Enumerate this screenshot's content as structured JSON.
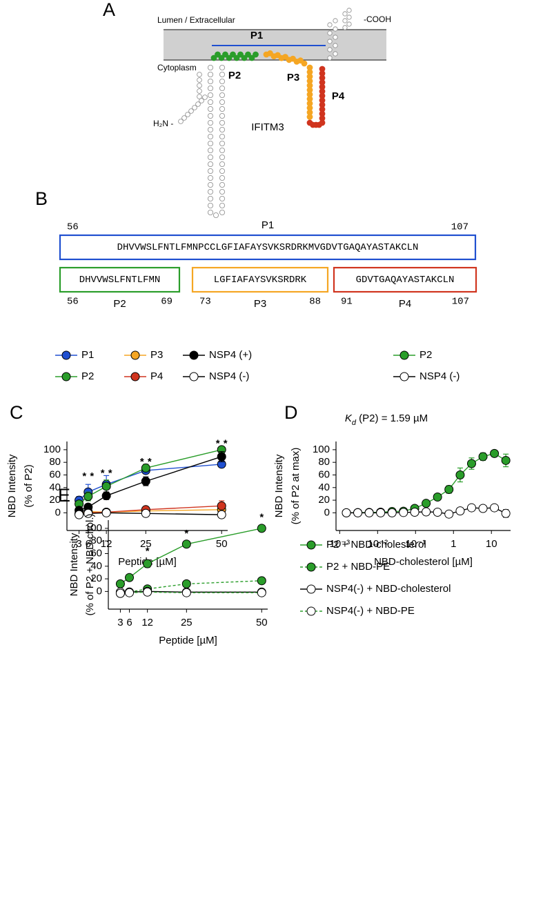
{
  "diagram": {
    "panel": "A",
    "lumen": "Lumen / Extracellular",
    "cooh": "-COOH",
    "cytoplasm": "Cytoplasm",
    "nterm": "H₂N -",
    "protein": "IFITM3",
    "segments": [
      {
        "name": "P1",
        "color": "#1f4fd0"
      },
      {
        "name": "P2",
        "color": "#2a9d2a"
      },
      {
        "name": "P3",
        "color": "#f5a623"
      },
      {
        "name": "P4",
        "color": "#d0341e"
      }
    ]
  },
  "sequences": {
    "panel": "B",
    "peptides": [
      {
        "name": "P1",
        "sequence": "DHVVWSLFNTLFMNPCCLGFIAFAYSVKSRDRKMVGDVTGAQAYASTAKCLN",
        "start": 56,
        "end": 107,
        "color": "#1f4fd0"
      },
      {
        "name": "P2",
        "sequence": "DHVVWSLFNTLFMN",
        "start": 56,
        "end": 69,
        "color": "#2a9d2a"
      },
      {
        "name": "P3",
        "sequence": "LGFIAFAYSVKSRDRK",
        "start": 73,
        "end": 88,
        "color": "#f5a623"
      },
      {
        "name": "P4",
        "sequence": "GDVTGAQAYASTAKCLN",
        "start": 91,
        "end": 107,
        "color": "#d0341e"
      }
    ]
  },
  "chart_data": [
    {
      "type": "line",
      "panel": "C",
      "legend": "top",
      "xlabel": "Peptide [µM]",
      "ylabel": [
        "NBD Intensity",
        "(% of P2)"
      ],
      "x": [
        3,
        6,
        12,
        25,
        50
      ],
      "xlim": [
        -1,
        52
      ],
      "xticks": [
        3,
        6,
        12,
        25,
        50
      ],
      "ylim": [
        -28,
        113
      ],
      "yticks": [
        0,
        20,
        40,
        60,
        80,
        100
      ],
      "series": [
        {
          "name": "P1",
          "color": "#1f4fd0",
          "fill": "#1f4fd0",
          "values": [
            20,
            33,
            45,
            67,
            77
          ],
          "errors": [
            6,
            12,
            14,
            4,
            3
          ]
        },
        {
          "name": "P2",
          "color": "#2a9d2a",
          "fill": "#2a9d2a",
          "values": [
            14,
            26,
            42,
            71,
            100
          ],
          "errors": [
            5,
            7,
            10,
            6,
            2
          ]
        },
        {
          "name": "P3",
          "color": "#f5a623",
          "fill": "#f5a623",
          "values": [
            -1,
            2,
            1,
            3,
            5
          ],
          "errors": [
            3,
            3,
            3,
            3,
            3
          ]
        },
        {
          "name": "P4",
          "color": "#d0341e",
          "fill": "#d0341e",
          "values": [
            -2,
            0,
            1,
            5,
            11
          ],
          "errors": [
            3,
            3,
            3,
            5,
            8
          ]
        },
        {
          "name": "NSP4 (+)",
          "color": "#000000",
          "fill": "#000000",
          "values": [
            4,
            9,
            27,
            50,
            89
          ],
          "errors": [
            3,
            4,
            6,
            7,
            8
          ]
        },
        {
          "name": "NSP4 (-)",
          "color": "#000000",
          "fill": "#ffffff",
          "values": [
            -3,
            -1,
            0,
            -1,
            -3
          ],
          "errors": [
            3,
            3,
            3,
            3,
            4
          ]
        }
      ],
      "annotations": [
        {
          "x": 6,
          "y": 57,
          "label": "*",
          "colors": [
            "#d0341e",
            "#f5a623"
          ]
        },
        {
          "x": 12,
          "y": 62,
          "label": "*",
          "colors": [
            "#d0341e",
            "#f5a623"
          ]
        },
        {
          "x": 25,
          "y": 80,
          "label": "*",
          "colors": [
            "#d0341e",
            "#f5a623"
          ]
        },
        {
          "x": 50,
          "y": 109,
          "label": "*",
          "colors": [
            "#d0341e",
            "#f5a623"
          ]
        }
      ]
    },
    {
      "type": "line",
      "panel": "D",
      "legend": "top",
      "log_x": true,
      "title": [
        "K",
        "d",
        " (P2) = 1.59 µM"
      ],
      "xlabel": "NBD-cholesterol [µM]",
      "ylabel": [
        "NBD Intensity",
        "(% of P2 at max)"
      ],
      "x": [
        0.0015,
        0.003,
        0.006,
        0.012,
        0.024,
        0.048,
        0.095,
        0.19,
        0.38,
        0.76,
        1.5,
        3,
        6,
        12,
        24
      ],
      "xlim": [
        0.0008,
        32
      ],
      "xticks": [
        {
          "value": 0.001,
          "label": "10⁻³"
        },
        {
          "value": 0.01,
          "label": "10⁻²"
        },
        {
          "value": 0.1,
          "label": "10⁻¹"
        },
        1,
        10
      ],
      "ylim": [
        -28,
        113
      ],
      "yticks": [
        0,
        20,
        40,
        60,
        80,
        100
      ],
      "series": [
        {
          "name": "P2",
          "color": "#2a9d2a",
          "fill": "#2a9d2a",
          "values": [
            0,
            0.3,
            0.5,
            1,
            2,
            2.5,
            7,
            15,
            25,
            37,
            60,
            78,
            89,
            94,
            83
          ],
          "errors": [
            1,
            1,
            1,
            1,
            1,
            1,
            3,
            5,
            5,
            6,
            11,
            9,
            6,
            2,
            10
          ]
        },
        {
          "name": "NSP4 (-)",
          "color": "#000000",
          "fill": "#ffffff",
          "values": [
            0,
            0,
            0,
            0,
            0,
            0.5,
            1,
            1.5,
            1,
            -2,
            3,
            8,
            7,
            8,
            -1
          ],
          "errors": [
            1,
            1,
            1,
            1,
            1,
            1,
            1,
            2,
            1,
            1,
            2,
            3,
            3,
            2,
            6
          ]
        }
      ]
    },
    {
      "type": "line",
      "panel": "E",
      "legend": "right",
      "xlabel": "Peptide [µM]",
      "ylabel": [
        "NBD Intensity",
        "(% of P2 + NBD-chol.)"
      ],
      "x": [
        3,
        6,
        12,
        25,
        50
      ],
      "xlim": [
        -1,
        52
      ],
      "xticks": [
        3,
        6,
        12,
        25,
        50
      ],
      "ylim": [
        -28,
        113
      ],
      "yticks": [
        0,
        20,
        40,
        60,
        80,
        100
      ],
      "series": [
        {
          "name": "P2 + NBD-cholesterol",
          "color": "#2a9d2a",
          "fill": "#2a9d2a",
          "dashed": false,
          "values": [
            12,
            22,
            44,
            75,
            100
          ],
          "errors": [
            4,
            5,
            6,
            4,
            1
          ]
        },
        {
          "name": "P2 + NBD-PE",
          "color": "#2a9d2a",
          "fill": "#2a9d2a",
          "dashed": true,
          "values": [
            -3,
            -1,
            4,
            12,
            17
          ],
          "errors": [
            2,
            2,
            2,
            3,
            5
          ]
        },
        {
          "name": "NSP4(-) + NBD-cholesterol",
          "color": "#000000",
          "fill": "#ffffff",
          "dashed": false,
          "values": [
            -1,
            -1,
            0,
            -1,
            -1
          ],
          "errors": [
            1,
            1,
            1,
            1,
            2
          ]
        },
        {
          "name": "NSP4(-) + NBD-PE",
          "color": "#2a9d2a",
          "fill": "#ffffff",
          "dashed": true,
          "values": [
            -3,
            -2,
            -1,
            -2,
            -2
          ],
          "errors": [
            1,
            1,
            1,
            1,
            1
          ]
        }
      ],
      "annotations": [
        {
          "x": 12,
          "y": 63,
          "label": "*",
          "colors": [
            "#2a9d2a"
          ]
        },
        {
          "x": 25,
          "y": 91,
          "label": "*",
          "colors": [
            "#2a9d2a"
          ]
        },
        {
          "x": 50,
          "y": 117,
          "label": "*",
          "colors": [
            "#2a9d2a"
          ]
        }
      ]
    }
  ]
}
